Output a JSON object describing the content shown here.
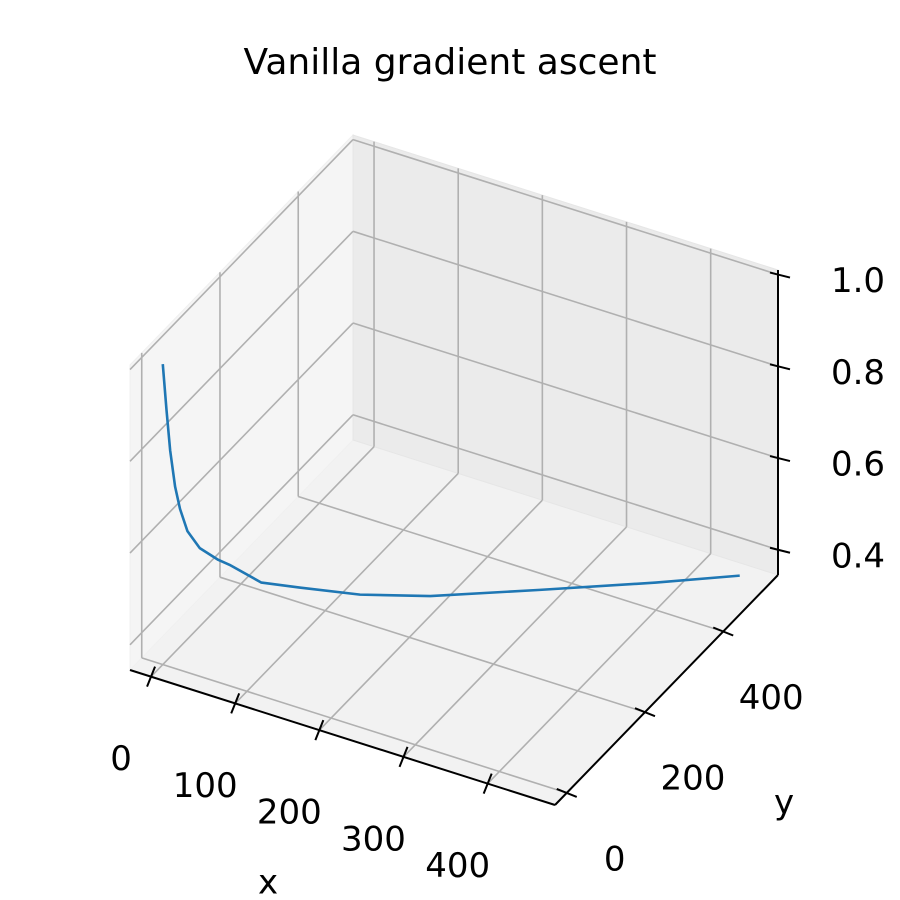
{
  "chart_data": {
    "type": "line3d",
    "title": "Vanilla gradient ascent",
    "x_label": "x",
    "y_label": "y",
    "x": [
      0,
      3,
      6,
      10,
      14,
      20,
      30,
      45,
      55,
      80,
      111,
      160,
      217,
      306,
      400,
      468
    ],
    "y": [
      0,
      3,
      6,
      10,
      14,
      20,
      30,
      45,
      55,
      80,
      111,
      160,
      217,
      306,
      400,
      468
    ],
    "z": [
      1.0,
      0.9,
      0.81,
      0.73,
      0.68,
      0.63,
      0.59,
      0.56,
      0.545,
      0.5,
      0.48,
      0.45,
      0.43,
      0.417,
      0.405,
      0.4
    ],
    "color": "#1f77b4",
    "xlim": [
      -25,
      480
    ],
    "ylim": [
      -30,
      540
    ],
    "zlim": [
      0.345,
      1.01
    ],
    "xticks": [
      0,
      100,
      200,
      300,
      400
    ],
    "yticks": [
      0,
      200,
      400
    ],
    "zticks": [
      0.4,
      0.6,
      0.8,
      {
        "value": 1.0,
        "label": "1.0"
      }
    ],
    "grid": true
  }
}
